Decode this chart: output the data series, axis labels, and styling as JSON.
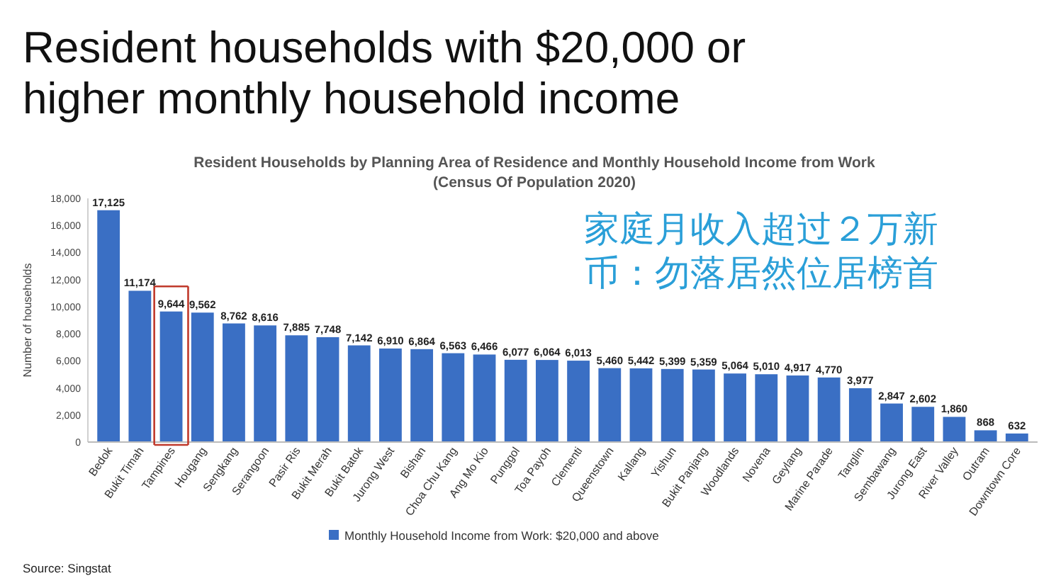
{
  "chart_data": {
    "type": "bar",
    "title": "Resident households with $20,000 or\nhigher monthly household income",
    "subtitle": "Resident Households by Planning Area of Residence and Monthly Household Income from Work\n(Census Of Population 2020)",
    "ylabel": "Number of households",
    "categories": [
      "Bedok",
      "Bukit Timah",
      "Tampines",
      "Hougang",
      "Sengkang",
      "Serangoon",
      "Pasir Ris",
      "Bukit Merah",
      "Bukit Batok",
      "Jurong West",
      "Bishan",
      "Choa Chu Kang",
      "Ang Mo Kio",
      "Punggol",
      "Toa Payoh",
      "Clementi",
      "Queenstown",
      "Kallang",
      "Yishun",
      "Bukit Panjang",
      "Woodlands",
      "Novena",
      "Geylang",
      "Marine Parade",
      "Tanglin",
      "Sembawang",
      "Jurong East",
      "River Valley",
      "Outram",
      "Downtown Core"
    ],
    "series": [
      {
        "name": "Monthly Household Income from Work: $20,000 and above",
        "color": "#3a6fc4",
        "values": [
          17125,
          11174,
          9644,
          9562,
          8762,
          8616,
          7885,
          7748,
          7142,
          6910,
          6864,
          6563,
          6466,
          6077,
          6064,
          6013,
          5460,
          5442,
          5399,
          5359,
          5064,
          5010,
          4917,
          4770,
          3977,
          2847,
          2602,
          1860,
          868,
          632
        ]
      }
    ],
    "ylim": [
      0,
      18000
    ],
    "yticks": [
      {
        "value": 0,
        "label": "0"
      },
      {
        "value": 2000,
        "label": "2,000"
      },
      {
        "value": 4000,
        "label": "4,000"
      },
      {
        "value": 6000,
        "label": "6,000"
      },
      {
        "value": 8000,
        "label": "8,000"
      },
      {
        "value": 10000,
        "label": "10,000"
      },
      {
        "value": 12000,
        "label": "12,000"
      },
      {
        "value": 14000,
        "label": "14,000"
      },
      {
        "value": 16000,
        "label": "16,000"
      },
      {
        "value": 18000,
        "label": "18,000"
      }
    ],
    "value_labels": [
      "17,125",
      "11,174",
      "9,644",
      "9,562",
      "8,762",
      "8,616",
      "7,885",
      "7,748",
      "7,142",
      "6,910",
      "6,864",
      "6,563",
      "6,466",
      "6,077",
      "6,064",
      "6,013",
      "5,460",
      "5,442",
      "5,399",
      "5,359",
      "5,064",
      "5,010",
      "4,917",
      "4,770",
      "3,977",
      "2,847",
      "2,602",
      "1,860",
      "868",
      "632"
    ],
    "legend": "bottom",
    "annotations": [
      "家庭月收入超过２万新币：勿落居然位居榜首",
      "Source: Singstat"
    ]
  }
}
